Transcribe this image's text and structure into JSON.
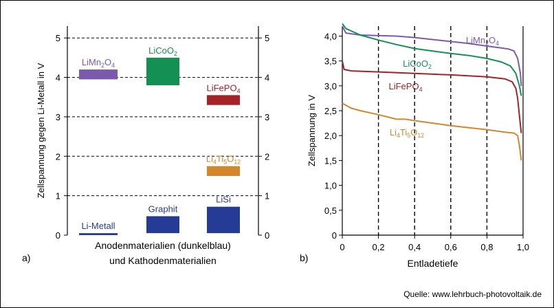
{
  "colors": {
    "purple": "#7b5aae",
    "green": "#159055",
    "red": "#a52226",
    "orange": "#d2882a",
    "blue": "#253b96",
    "axis": "#000000"
  },
  "source": "Quelle: www.lehrbuch-photovoltaik.de",
  "chart_data": [
    {
      "type": "bar",
      "panel_label": "a)",
      "ylabel": "Zellspannung  gegen Li-Metall in V",
      "xlabel_line1": "Anodenmaterialien  (dunkelblau)",
      "xlabel_line2": "und Kathodenmaterialien",
      "ylim": [
        0,
        5.3
      ],
      "yticks": [
        "0",
        "1",
        "2",
        "3",
        "4",
        "5"
      ],
      "grid": "horizontal-dashed",
      "bars": [
        {
          "label": "LiMn2O4",
          "label_base": "LiMn",
          "label_parts": [
            {
              "t": "LiMn"
            },
            {
              "t": "2",
              "sub": true
            },
            {
              "t": "O"
            },
            {
              "t": "4",
              "sub": true
            }
          ],
          "column": 0,
          "low": 3.95,
          "high": 4.2,
          "color": "purple"
        },
        {
          "label": "LiCoO2",
          "label_parts": [
            {
              "t": "LiCoO"
            },
            {
              "t": "2",
              "sub": true
            }
          ],
          "column": 1,
          "low": 3.8,
          "high": 4.5,
          "color": "green"
        },
        {
          "label": "LiFePO4",
          "label_parts": [
            {
              "t": "LiFePO"
            },
            {
              "t": "4",
              "sub": true
            }
          ],
          "column": 2,
          "low": 3.3,
          "high": 3.55,
          "color": "red"
        },
        {
          "label": "Li4Ti5O12",
          "label_parts": [
            {
              "t": "Li"
            },
            {
              "t": "4",
              "sub": true
            },
            {
              "t": "Ti"
            },
            {
              "t": "5",
              "sub": true
            },
            {
              "t": "O"
            },
            {
              "t": "12",
              "sub": true
            }
          ],
          "column": 2,
          "low": 1.5,
          "high": 1.75,
          "color": "orange"
        },
        {
          "label": "Li-Metall",
          "label_parts": [
            {
              "t": "Li-Metall"
            }
          ],
          "column": 0,
          "low": 0.0,
          "high": 0.05,
          "color": "blue"
        },
        {
          "label": "Graphit",
          "label_parts": [
            {
              "t": "Graphit"
            }
          ],
          "column": 1,
          "low": 0.05,
          "high": 0.48,
          "color": "blue"
        },
        {
          "label": "LiSi",
          "label_parts": [
            {
              "t": "LiSi"
            }
          ],
          "column": 2,
          "low": 0.05,
          "high": 0.72,
          "color": "blue"
        }
      ]
    },
    {
      "type": "line",
      "panel_label": "b)",
      "xlabel": "Entladetiefe",
      "ylabel": "Zellspannung  in V",
      "xlim": [
        0,
        1.0
      ],
      "ylim": [
        0,
        4.2
      ],
      "xticks": [
        "0",
        "0,2",
        "0,4",
        "0,6",
        "0,8",
        "1,0"
      ],
      "yticks": [
        "0",
        "0,5",
        "1,0",
        "1,5",
        "2,0",
        "2,5",
        "3,0",
        "3,5",
        "4,0"
      ],
      "grid": "vertical-dashed",
      "series": [
        {
          "name": "LiMn2O4",
          "label_parts": [
            {
              "t": "LiMn"
            },
            {
              "t": "2",
              "sub": true
            },
            {
              "t": "O"
            },
            {
              "t": "4",
              "sub": true
            }
          ],
          "color": "purple",
          "x": [
            0,
            0.02,
            0.1,
            0.2,
            0.3,
            0.4,
            0.5,
            0.6,
            0.7,
            0.8,
            0.88,
            0.92,
            0.95,
            0.97,
            0.985,
            0.99
          ],
          "y": [
            4.2,
            4.06,
            4.02,
            4.01,
            4.0,
            3.97,
            3.93,
            3.89,
            3.85,
            3.8,
            3.76,
            3.74,
            3.7,
            3.55,
            3.25,
            3.0
          ]
        },
        {
          "name": "LiCoO2",
          "label_parts": [
            {
              "t": "LiCoO"
            },
            {
              "t": "2",
              "sub": true
            }
          ],
          "color": "green",
          "x": [
            0,
            0.02,
            0.1,
            0.2,
            0.3,
            0.4,
            0.5,
            0.6,
            0.7,
            0.8,
            0.88,
            0.93,
            0.96,
            0.98,
            0.99
          ],
          "y": [
            4.25,
            4.15,
            4.02,
            3.92,
            3.83,
            3.75,
            3.7,
            3.65,
            3.61,
            3.55,
            3.48,
            3.4,
            3.25,
            3.0,
            2.8
          ]
        },
        {
          "name": "LiFePO4",
          "label_parts": [
            {
              "t": "LiFePO"
            },
            {
              "t": "4",
              "sub": true
            }
          ],
          "color": "red",
          "x": [
            0,
            0.01,
            0.05,
            0.2,
            0.4,
            0.6,
            0.8,
            0.9,
            0.94,
            0.96,
            0.97,
            0.98,
            0.99
          ],
          "y": [
            3.5,
            3.33,
            3.3,
            3.28,
            3.25,
            3.22,
            3.18,
            3.14,
            3.08,
            2.95,
            2.75,
            2.4,
            2.05
          ]
        },
        {
          "name": "Li4Ti5O12",
          "label_parts": [
            {
              "t": "Li"
            },
            {
              "t": "4",
              "sub": true
            },
            {
              "t": "Ti"
            },
            {
              "t": "5",
              "sub": true
            },
            {
              "t": "O"
            },
            {
              "t": "12",
              "sub": true
            }
          ],
          "color": "orange",
          "x": [
            0,
            0.05,
            0.1,
            0.2,
            0.3,
            0.35,
            0.4,
            0.5,
            0.6,
            0.7,
            0.8,
            0.9,
            0.95,
            0.97,
            0.98,
            0.99
          ],
          "y": [
            2.65,
            2.55,
            2.5,
            2.42,
            2.33,
            2.33,
            2.3,
            2.25,
            2.2,
            2.16,
            2.12,
            2.07,
            2.05,
            2.0,
            1.8,
            1.5
          ]
        }
      ]
    }
  ]
}
